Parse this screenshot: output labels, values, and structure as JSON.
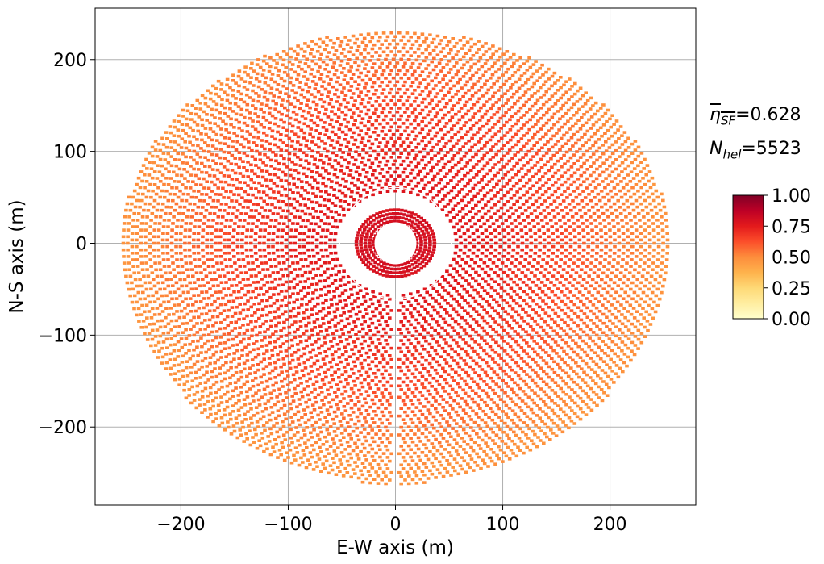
{
  "chart_data": {
    "type": "scatter",
    "title": "",
    "xlabel": "E-W axis (m)",
    "ylabel": "N-S axis (m)",
    "xlim": [
      -280,
      280
    ],
    "ylim": [
      -285,
      256
    ],
    "xticks": [
      -200,
      -100,
      0,
      100,
      200
    ],
    "yticks": [
      -200,
      -100,
      0,
      100,
      200
    ],
    "xtick_labels": [
      "−200",
      "−100",
      "0",
      "100",
      "200"
    ],
    "ytick_labels": [
      "−200",
      "−100",
      "0",
      "100",
      "200"
    ],
    "grid": true,
    "colormap": "YlOrRd",
    "colorbar": {
      "range": [
        0,
        1
      ],
      "ticks": [
        0,
        0.25,
        0.5,
        0.75,
        1
      ],
      "tick_labels": [
        "0.00",
        "0.25",
        "0.50",
        "0.75",
        "1.00"
      ],
      "colors": [
        "#ffffcc",
        "#ffeda0",
        "#fed976",
        "#feb24c",
        "#fd8d3c",
        "#fc4e2a",
        "#e31a1c",
        "#bd0026",
        "#800026"
      ]
    },
    "heliostat_field": {
      "count": 5523,
      "inner_radius_m": 20,
      "tower_clear_radius_m": 52,
      "outer_radius_north_m": 232,
      "outer_radius_south_m": 262,
      "outer_radius_ew_m": 255,
      "efficiency_profile": [
        {
          "radius_m": 30,
          "efficiency": 0.8
        },
        {
          "radius_m": 60,
          "efficiency": 0.76
        },
        {
          "radius_m": 100,
          "efficiency": 0.72
        },
        {
          "radius_m": 150,
          "efficiency": 0.65
        },
        {
          "radius_m": 200,
          "efficiency": 0.55
        },
        {
          "radius_m": 250,
          "efficiency": 0.48
        }
      ],
      "south_gap": true
    },
    "annotations": {
      "eta_symbol": "η",
      "eta_sub": "SF",
      "eta_value": "=0.628",
      "n_symbol": "N",
      "n_sub": "hel",
      "n_value": "=5523"
    }
  }
}
